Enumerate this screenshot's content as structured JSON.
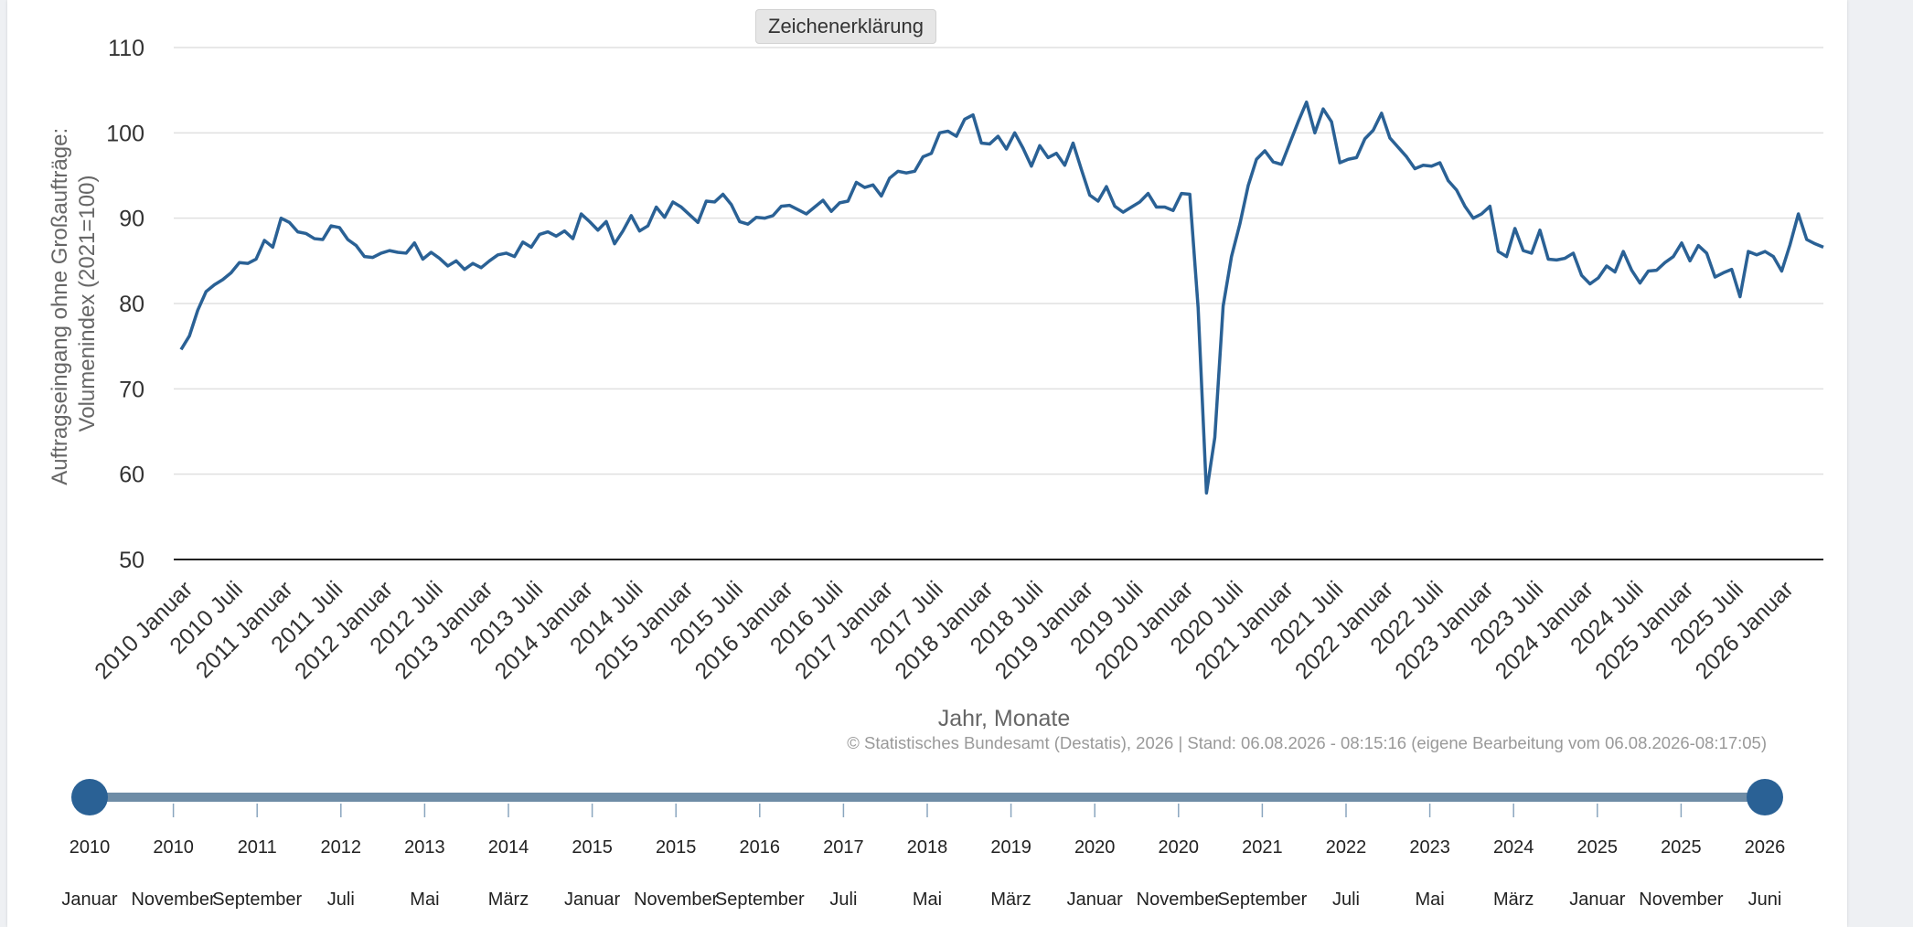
{
  "legend_button_label": "Zeichenerklärung",
  "source_note": "© Statistisches Bundesamt (Destatis), 2026 | Stand: 06.08.2026 - 08:15:16 (eigene Bearbeitung vom 06.08.2026-08:17:05)",
  "colors": {
    "series": "#2a6195",
    "slider_track": "#6e8ca6",
    "slider_handle": "#2a6195",
    "grid": "#e0e0e0",
    "axis_text": "#333333",
    "title_text": "#666666"
  },
  "chart_data": {
    "type": "line",
    "title": "",
    "xlabel": "Jahr, Monate",
    "ylabel": "Auftragseingang ohne Großaufträge: Volumenindex (2021=100)",
    "ylabel_lines": [
      "Auftragseingang ohne Großaufträge:",
      "Volumenindex (2021=100)"
    ],
    "ylim": [
      50,
      110
    ],
    "yticks": [
      50,
      60,
      70,
      80,
      90,
      100,
      110
    ],
    "grid": true,
    "x_start": "2010 Januar",
    "x_tick_labels": [
      "2010 Januar",
      "2010 Juli",
      "2011 Januar",
      "2011 Juli",
      "2012 Januar",
      "2012 Juli",
      "2013 Januar",
      "2013 Juli",
      "2014 Januar",
      "2014 Juli",
      "2015 Januar",
      "2015 Juli",
      "2016 Januar",
      "2016 Juli",
      "2017 Januar",
      "2017 Juli",
      "2018 Januar",
      "2018 Juli",
      "2019 Januar",
      "2019 Juli",
      "2020 Januar",
      "2020 Juli",
      "2021 Januar",
      "2021 Juli",
      "2022 Januar",
      "2022 Juli",
      "2023 Januar",
      "2023 Juli",
      "2024 Januar",
      "2024 Juli",
      "2025 Januar",
      "2025 Juli",
      "2026 Januar"
    ],
    "series": [
      {
        "name": "",
        "values": [
          74.6,
          76.2,
          79.2,
          81.4,
          82.2,
          82.8,
          83.6,
          84.8,
          84.7,
          85.2,
          87.4,
          86.6,
          90.0,
          89.5,
          88.4,
          88.2,
          87.6,
          87.5,
          89.1,
          88.9,
          87.5,
          86.8,
          85.5,
          85.4,
          85.9,
          86.2,
          86.0,
          85.9,
          87.1,
          85.2,
          86.0,
          85.3,
          84.4,
          85.0,
          84.0,
          84.7,
          84.2,
          85.0,
          85.7,
          85.9,
          85.5,
          87.2,
          86.6,
          88.1,
          88.4,
          87.9,
          88.5,
          87.6,
          90.5,
          89.6,
          88.6,
          89.6,
          87.0,
          88.5,
          90.3,
          88.5,
          89.1,
          91.3,
          90.1,
          91.9,
          91.3,
          90.4,
          89.5,
          92.0,
          91.9,
          92.8,
          91.6,
          89.6,
          89.3,
          90.1,
          90.0,
          90.3,
          91.4,
          91.5,
          91.0,
          90.5,
          91.3,
          92.1,
          90.8,
          91.8,
          92.0,
          94.2,
          93.6,
          93.9,
          92.6,
          94.7,
          95.5,
          95.3,
          95.5,
          97.2,
          97.6,
          100.0,
          100.2,
          99.6,
          101.6,
          102.1,
          98.8,
          98.7,
          99.6,
          98.1,
          100.0,
          98.2,
          96.1,
          98.5,
          97.1,
          97.6,
          96.2,
          98.8,
          95.7,
          92.7,
          92.0,
          93.7,
          91.4,
          90.7,
          91.3,
          91.9,
          92.9,
          91.3,
          91.3,
          90.9,
          92.9,
          92.8,
          79.5,
          57.8,
          64.3,
          79.7,
          85.5,
          89.3,
          93.8,
          96.9,
          97.9,
          96.6,
          96.3,
          98.8,
          101.3,
          103.6,
          100.0,
          102.8,
          101.3,
          96.5,
          96.9,
          97.1,
          99.3,
          100.3,
          102.3,
          99.4,
          98.3,
          97.2,
          95.8,
          96.2,
          96.1,
          96.5,
          94.4,
          93.3,
          91.4,
          90.0,
          90.5,
          91.4,
          86.1,
          85.5,
          88.8,
          86.2,
          85.9,
          88.6,
          85.2,
          85.1,
          85.3,
          85.9,
          83.3,
          82.3,
          83.0,
          84.4,
          83.7,
          86.1,
          83.9,
          82.4,
          83.8,
          83.9,
          84.8,
          85.5,
          87.1,
          85.0,
          86.8,
          85.9,
          83.1,
          83.6,
          84.0,
          80.8,
          86.1,
          85.7,
          86.1,
          85.5,
          83.8,
          86.9,
          90.5,
          87.5,
          87.0,
          86.6
        ]
      }
    ]
  },
  "slider": {
    "ticks": [
      {
        "year": "2010",
        "month": "Januar"
      },
      {
        "year": "2010",
        "month": "November"
      },
      {
        "year": "2011",
        "month": "September"
      },
      {
        "year": "2012",
        "month": "Juli"
      },
      {
        "year": "2013",
        "month": "Mai"
      },
      {
        "year": "2014",
        "month": "März"
      },
      {
        "year": "2015",
        "month": "Januar"
      },
      {
        "year": "2015",
        "month": "November"
      },
      {
        "year": "2016",
        "month": "September"
      },
      {
        "year": "2017",
        "month": "Juli"
      },
      {
        "year": "2018",
        "month": "Mai"
      },
      {
        "year": "2019",
        "month": "März"
      },
      {
        "year": "2020",
        "month": "Januar"
      },
      {
        "year": "2020",
        "month": "November"
      },
      {
        "year": "2021",
        "month": "September"
      },
      {
        "year": "2022",
        "month": "Juli"
      },
      {
        "year": "2023",
        "month": "Mai"
      },
      {
        "year": "2024",
        "month": "März"
      },
      {
        "year": "2025",
        "month": "Januar"
      },
      {
        "year": "2025",
        "month": "November"
      },
      {
        "year": "2026",
        "month": "Juni"
      }
    ],
    "range_start": "2010 Januar",
    "range_end": "2026 Juni"
  }
}
